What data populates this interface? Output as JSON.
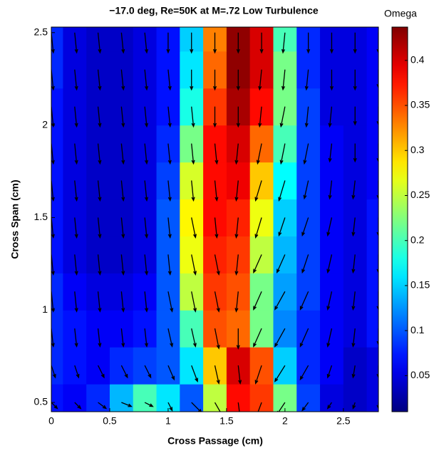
{
  "chart_data": {
    "type": "contour",
    "title": "−17.0 deg, Re=50K at M=.72 Low Turbulence",
    "colorbar_label": "Omega",
    "xlabel": "Cross Passage (cm)",
    "ylabel": "Cross Span (cm)",
    "colormap": "jet",
    "x": [
      0,
      0.2,
      0.4,
      0.6,
      0.8,
      1.0,
      1.2,
      1.4,
      1.6,
      1.8,
      2.0,
      2.2,
      2.4,
      2.6,
      2.8
    ],
    "y": [
      0.5,
      0.7,
      0.9,
      1.1,
      1.3,
      1.5,
      1.7,
      1.9,
      2.1,
      2.3,
      2.5
    ],
    "z": [
      [
        0.07,
        0.06,
        0.08,
        0.14,
        0.2,
        0.16,
        0.1,
        0.25,
        0.38,
        0.36,
        0.22,
        0.09,
        0.05,
        0.04,
        0.05
      ],
      [
        0.08,
        0.07,
        0.06,
        0.08,
        0.09,
        0.1,
        0.16,
        0.3,
        0.4,
        0.35,
        0.15,
        0.08,
        0.06,
        0.04,
        0.05
      ],
      [
        0.08,
        0.07,
        0.06,
        0.06,
        0.07,
        0.1,
        0.2,
        0.35,
        0.34,
        0.22,
        0.12,
        0.08,
        0.06,
        0.05,
        0.07
      ],
      [
        0.08,
        0.06,
        0.05,
        0.05,
        0.06,
        0.1,
        0.25,
        0.36,
        0.35,
        0.22,
        0.13,
        0.09,
        0.06,
        0.05,
        0.07
      ],
      [
        0.07,
        0.05,
        0.04,
        0.04,
        0.05,
        0.1,
        0.27,
        0.37,
        0.36,
        0.25,
        0.14,
        0.09,
        0.06,
        0.05,
        0.07
      ],
      [
        0.07,
        0.05,
        0.04,
        0.04,
        0.05,
        0.1,
        0.28,
        0.38,
        0.37,
        0.27,
        0.15,
        0.09,
        0.06,
        0.05,
        0.07
      ],
      [
        0.07,
        0.05,
        0.04,
        0.04,
        0.05,
        0.09,
        0.26,
        0.38,
        0.39,
        0.3,
        0.17,
        0.09,
        0.06,
        0.05,
        0.06
      ],
      [
        0.07,
        0.05,
        0.04,
        0.04,
        0.05,
        0.08,
        0.22,
        0.38,
        0.4,
        0.34,
        0.2,
        0.09,
        0.06,
        0.05,
        0.06
      ],
      [
        0.07,
        0.05,
        0.04,
        0.04,
        0.05,
        0.07,
        0.18,
        0.36,
        0.42,
        0.38,
        0.22,
        0.09,
        0.05,
        0.05,
        0.06
      ],
      [
        0.08,
        0.05,
        0.04,
        0.04,
        0.05,
        0.07,
        0.16,
        0.34,
        0.43,
        0.4,
        0.22,
        0.08,
        0.05,
        0.05,
        0.06
      ],
      [
        0.08,
        0.05,
        0.04,
        0.04,
        0.05,
        0.07,
        0.15,
        0.33,
        0.43,
        0.4,
        0.2,
        0.08,
        0.05,
        0.05,
        0.06
      ]
    ],
    "vectors": {
      "u": [
        [
          0.3,
          0.3,
          0.4,
          0.5,
          0.4,
          0.2,
          0.5,
          0.4,
          0.1,
          -0.3,
          -0.4,
          -0.3,
          -0.2,
          -0.1,
          0.0
        ],
        [
          0.2,
          0.2,
          0.3,
          0.3,
          0.3,
          0.3,
          0.3,
          0.2,
          0.1,
          -0.3,
          -0.5,
          -0.4,
          -0.2,
          -0.1,
          0.0
        ],
        [
          0.1,
          0.1,
          0.1,
          0.1,
          0.1,
          0.2,
          0.2,
          0.2,
          0.0,
          -0.4,
          -0.5,
          -0.4,
          -0.2,
          -0.1,
          0.0
        ],
        [
          0.1,
          0.1,
          0.1,
          0.1,
          0.1,
          0.2,
          0.2,
          0.2,
          -0.1,
          -0.4,
          -0.5,
          -0.4,
          -0.2,
          -0.1,
          0.0
        ],
        [
          0.1,
          0.1,
          0.1,
          0.1,
          0.1,
          0.1,
          0.2,
          0.2,
          -0.1,
          -0.4,
          -0.4,
          -0.3,
          -0.2,
          -0.1,
          0.0
        ],
        [
          0.1,
          0.1,
          0.1,
          0.1,
          0.1,
          0.1,
          0.2,
          0.1,
          -0.1,
          -0.3,
          -0.3,
          -0.3,
          -0.2,
          -0.1,
          0.0
        ],
        [
          0.1,
          0.1,
          0.1,
          0.1,
          0.1,
          0.1,
          0.1,
          0.1,
          -0.1,
          -0.3,
          -0.3,
          -0.2,
          -0.1,
          -0.1,
          0.0
        ],
        [
          0.1,
          0.1,
          0.1,
          0.1,
          0.1,
          0.1,
          0.1,
          0.1,
          -0.1,
          -0.2,
          -0.2,
          -0.2,
          -0.1,
          0.0,
          0.0
        ],
        [
          0.1,
          0.1,
          0.1,
          0.1,
          0.1,
          0.1,
          0.1,
          0.0,
          0.0,
          -0.1,
          -0.2,
          -0.1,
          -0.1,
          0.0,
          0.0
        ],
        [
          0.1,
          0.1,
          0.1,
          0.1,
          0.1,
          0.1,
          0.0,
          0.0,
          0.0,
          -0.1,
          -0.1,
          -0.1,
          0.0,
          0.0,
          0.0
        ],
        [
          0.1,
          0.1,
          0.1,
          0.1,
          0.1,
          0.0,
          0.0,
          0.0,
          0.0,
          0.0,
          -0.1,
          0.0,
          0.0,
          0.0,
          0.0
        ]
      ],
      "v": [
        [
          -0.3,
          -0.3,
          -0.3,
          -0.2,
          -0.2,
          -0.4,
          -0.5,
          -0.7,
          -0.8,
          -0.8,
          -0.6,
          -0.4,
          -0.3,
          -0.3,
          -0.3
        ],
        [
          -0.6,
          -0.6,
          -0.6,
          -0.6,
          -0.6,
          -0.7,
          -0.8,
          -0.9,
          -0.9,
          -0.9,
          -0.8,
          -0.7,
          -0.6,
          -0.6,
          -0.6
        ],
        [
          -0.9,
          -0.9,
          -0.9,
          -0.9,
          -0.9,
          -0.9,
          -0.9,
          -1.0,
          -1.0,
          -0.9,
          -0.9,
          -0.9,
          -0.9,
          -0.9,
          -0.8
        ],
        [
          -1.0,
          -1.0,
          -1.0,
          -1.0,
          -1.0,
          -1.0,
          -1.0,
          -1.0,
          -1.0,
          -0.9,
          -0.9,
          -0.9,
          -0.9,
          -0.9,
          -0.9
        ],
        [
          -1.0,
          -1.0,
          -1.0,
          -1.0,
          -1.0,
          -1.0,
          -1.0,
          -1.0,
          -1.0,
          -0.9,
          -0.9,
          -0.9,
          -0.9,
          -0.9,
          -0.9
        ],
        [
          -1.0,
          -1.0,
          -1.0,
          -1.0,
          -1.0,
          -1.0,
          -1.0,
          -1.0,
          -1.0,
          -1.0,
          -0.9,
          -0.9,
          -0.9,
          -0.9,
          -0.9
        ],
        [
          -1.0,
          -1.0,
          -1.0,
          -1.0,
          -1.0,
          -1.0,
          -1.0,
          -1.0,
          -1.0,
          -1.0,
          -1.0,
          -0.9,
          -0.9,
          -0.9,
          -0.9
        ],
        [
          -1.0,
          -1.0,
          -1.0,
          -1.0,
          -1.0,
          -1.0,
          -1.0,
          -1.0,
          -1.0,
          -1.0,
          -1.0,
          -1.0,
          -0.9,
          -0.9,
          -0.9
        ],
        [
          -1.0,
          -1.0,
          -1.0,
          -1.0,
          -1.0,
          -1.0,
          -1.0,
          -1.0,
          -1.0,
          -1.0,
          -1.0,
          -1.0,
          -1.0,
          -0.9,
          -0.9
        ],
        [
          -1.0,
          -1.0,
          -1.0,
          -1.0,
          -1.0,
          -1.0,
          -1.0,
          -1.0,
          -1.0,
          -1.0,
          -1.0,
          -1.0,
          -1.0,
          -1.0,
          -0.9
        ],
        [
          -1.0,
          -1.0,
          -1.0,
          -1.0,
          -1.0,
          -1.0,
          -1.0,
          -1.0,
          -1.0,
          -1.0,
          -1.0,
          -1.0,
          -1.0,
          -1.0,
          -1.0
        ]
      ],
      "color": "#000000"
    },
    "xlim": [
      0,
      2.8
    ],
    "ylim": [
      0.45,
      2.53
    ],
    "xticks": [
      0,
      0.5,
      1,
      1.5,
      2,
      2.5
    ],
    "yticks": [
      0.5,
      1,
      1.5,
      2,
      2.5
    ],
    "clim": [
      0.01,
      0.437
    ],
    "cticks": [
      0.05,
      0.1,
      0.15,
      0.2,
      0.25,
      0.3,
      0.35,
      0.4
    ]
  }
}
